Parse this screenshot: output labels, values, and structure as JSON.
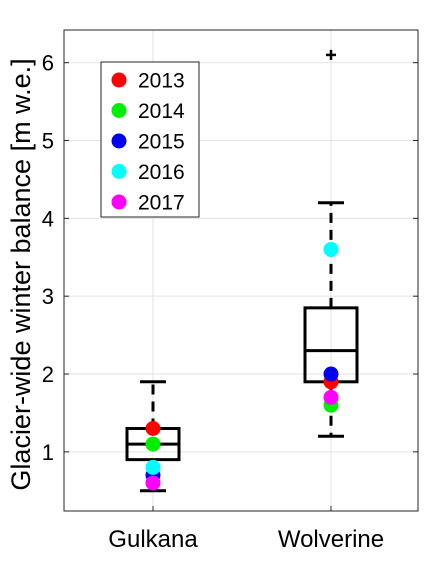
{
  "chart_data": {
    "type": "box",
    "ylabel": "Glacier-wide winter balance [m w.e.]",
    "xlabel": "",
    "title": "",
    "ylim": [
      0.24,
      6.42
    ],
    "yticks": [
      1,
      2,
      3,
      4,
      5,
      6
    ],
    "grid": true,
    "legend_position": "top-left",
    "categories": [
      "Gulkana",
      "Wolverine"
    ],
    "boxes": [
      {
        "category": "Gulkana",
        "whisker_low": 0.5,
        "q1": 0.9,
        "median": 1.1,
        "q3": 1.3,
        "whisker_high": 1.9,
        "outliers": []
      },
      {
        "category": "Wolverine",
        "whisker_low": 1.2,
        "q1": 1.9,
        "median": 2.3,
        "q3": 2.85,
        "whisker_high": 4.2,
        "outliers": [
          6.1
        ]
      }
    ],
    "series": [
      {
        "name": "2013",
        "color": "#ff0000",
        "values": [
          1.3,
          1.9
        ]
      },
      {
        "name": "2014",
        "color": "#00ee00",
        "values": [
          1.1,
          1.6
        ]
      },
      {
        "name": "2015",
        "color": "#0000ee",
        "values": [
          0.7,
          2.0
        ]
      },
      {
        "name": "2016",
        "color": "#00ffff",
        "values": [
          0.8,
          3.6
        ]
      },
      {
        "name": "2017",
        "color": "#ff00ff",
        "values": [
          0.6,
          1.7
        ]
      }
    ]
  }
}
